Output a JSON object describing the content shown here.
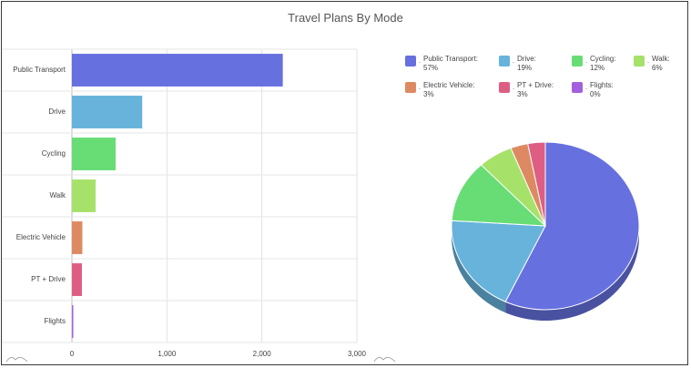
{
  "title": "Travel Plans By Mode",
  "colors": {
    "public_transport": "#6670DF",
    "drive": "#67B3DC",
    "cycling": "#68DC75",
    "walk": "#A6E26A",
    "electric_vehicle": "#DD8A62",
    "pt_drive": "#DE5E83",
    "flights": "#A260DE"
  },
  "legend": [
    {
      "label": "Public Transport:",
      "pct": "57%",
      "color_key": "public_transport"
    },
    {
      "label": "Drive:",
      "pct": "19%",
      "color_key": "drive"
    },
    {
      "label": "Cycling:",
      "pct": "12%",
      "color_key": "cycling"
    },
    {
      "label": "Walk:",
      "pct": "6%",
      "color_key": "walk"
    },
    {
      "label": "Electric Vehicle:",
      "pct": "3%",
      "color_key": "electric_vehicle"
    },
    {
      "label": "PT + Drive:",
      "pct": "3%",
      "color_key": "pt_drive"
    },
    {
      "label": "Flights:",
      "pct": "0%",
      "color_key": "flights"
    }
  ],
  "chart_data": [
    {
      "type": "bar",
      "orientation": "horizontal",
      "categories": [
        "Public Transport",
        "Drive",
        "Cycling",
        "Walk",
        "Electric Vehicle",
        "PT + Drive",
        "Flights"
      ],
      "values": [
        2220,
        740,
        460,
        250,
        110,
        105,
        10
      ],
      "xlim": [
        0,
        3000
      ],
      "xticks": [
        "0",
        "1,000",
        "2,000",
        "3,000"
      ],
      "grid": true
    },
    {
      "type": "pie",
      "style": "3d",
      "labels": [
        "Public Transport",
        "Drive",
        "Cycling",
        "Walk",
        "Electric Vehicle",
        "PT + Drive",
        "Flights"
      ],
      "values": [
        57,
        19,
        12,
        6,
        3,
        3,
        0
      ],
      "legend_position": "top"
    }
  ]
}
